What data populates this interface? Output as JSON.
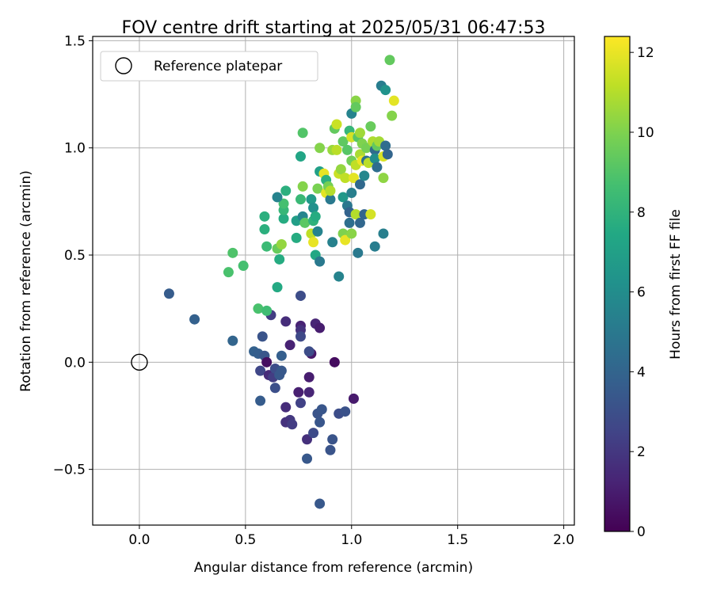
{
  "chart_data": {
    "type": "scatter",
    "title": "FOV centre drift starting at 2025/05/31 06:47:53",
    "xlabel": "Angular distance from reference (arcmin)",
    "ylabel": "Rotation from reference (arcmin)",
    "xlim": [
      -0.22,
      2.05
    ],
    "ylim": [
      -0.76,
      1.52
    ],
    "xticks": [
      0.0,
      0.5,
      1.0,
      1.5,
      2.0
    ],
    "xtick_labels": [
      "0.0",
      "0.5",
      "1.0",
      "1.5",
      "2.0"
    ],
    "yticks": [
      -0.5,
      0.0,
      0.5,
      1.0,
      1.5
    ],
    "ytick_labels": [
      "−0.5",
      "0.0",
      "0.5",
      "1.0",
      "1.5"
    ],
    "grid": true,
    "legend": {
      "placement": "top-left",
      "entries": [
        "Reference platepar"
      ]
    },
    "reference_point": {
      "x": 0.0,
      "y": 0.0,
      "label": "Reference platepar",
      "marker": "open-circle"
    },
    "colorbar": {
      "label": "Hours from first FF file",
      "range": [
        0,
        12.4
      ],
      "ticks": [
        0,
        2,
        4,
        6,
        8,
        10,
        12
      ],
      "tick_labels": [
        "0",
        "2",
        "4",
        "6",
        "8",
        "10",
        "12"
      ],
      "colormap": "viridis"
    },
    "points": [
      {
        "x": 0.14,
        "y": 0.32,
        "h": 3.6
      },
      {
        "x": 0.26,
        "y": 0.2,
        "h": 3.8
      },
      {
        "x": 0.44,
        "y": 0.1,
        "h": 4.0
      },
      {
        "x": 0.54,
        "y": 0.05,
        "h": 3.8
      },
      {
        "x": 0.56,
        "y": 0.04,
        "h": 3.7
      },
      {
        "x": 0.58,
        "y": 0.12,
        "h": 3.2
      },
      {
        "x": 0.57,
        "y": -0.04,
        "h": 2.6
      },
      {
        "x": 0.59,
        "y": 0.03,
        "h": 3.3
      },
      {
        "x": 0.61,
        "y": -0.06,
        "h": 1.5
      },
      {
        "x": 0.6,
        "y": 0.0,
        "h": 0.5
      },
      {
        "x": 0.63,
        "y": -0.07,
        "h": 2.2
      },
      {
        "x": 0.64,
        "y": -0.03,
        "h": 2.9
      },
      {
        "x": 0.66,
        "y": -0.06,
        "h": 3.4
      },
      {
        "x": 0.67,
        "y": 0.03,
        "h": 3.7
      },
      {
        "x": 0.67,
        "y": -0.04,
        "h": 3.4
      },
      {
        "x": 0.64,
        "y": -0.12,
        "h": 3.0
      },
      {
        "x": 0.57,
        "y": -0.18,
        "h": 3.6
      },
      {
        "x": 0.69,
        "y": -0.21,
        "h": 1.6
      },
      {
        "x": 0.71,
        "y": -0.27,
        "h": 2.0
      },
      {
        "x": 0.69,
        "y": -0.28,
        "h": 1.8
      },
      {
        "x": 0.72,
        "y": -0.29,
        "h": 2.2
      },
      {
        "x": 0.75,
        "y": -0.14,
        "h": 1.1
      },
      {
        "x": 0.76,
        "y": -0.19,
        "h": 2.4
      },
      {
        "x": 0.8,
        "y": -0.14,
        "h": 1.3
      },
      {
        "x": 0.8,
        "y": -0.07,
        "h": 1.0
      },
      {
        "x": 0.79,
        "y": -0.36,
        "h": 1.7
      },
      {
        "x": 0.82,
        "y": -0.33,
        "h": 2.8
      },
      {
        "x": 0.84,
        "y": -0.24,
        "h": 3.2
      },
      {
        "x": 0.85,
        "y": -0.28,
        "h": 3.3
      },
      {
        "x": 0.86,
        "y": -0.22,
        "h": 3.3
      },
      {
        "x": 0.79,
        "y": -0.45,
        "h": 3.4
      },
      {
        "x": 0.85,
        "y": -0.66,
        "h": 3.4
      },
      {
        "x": 0.9,
        "y": -0.41,
        "h": 3.2
      },
      {
        "x": 0.91,
        "y": -0.36,
        "h": 3.2
      },
      {
        "x": 0.94,
        "y": -0.24,
        "h": 2.9
      },
      {
        "x": 0.97,
        "y": -0.23,
        "h": 3.1
      },
      {
        "x": 1.01,
        "y": -0.17,
        "h": 0.9
      },
      {
        "x": 0.92,
        "y": 0.0,
        "h": 0.4
      },
      {
        "x": 0.81,
        "y": 0.04,
        "h": 0.8
      },
      {
        "x": 0.8,
        "y": 0.05,
        "h": 2.9
      },
      {
        "x": 0.71,
        "y": 0.08,
        "h": 1.2
      },
      {
        "x": 0.62,
        "y": 0.22,
        "h": 2.2
      },
      {
        "x": 0.69,
        "y": 0.19,
        "h": 1.6
      },
      {
        "x": 0.76,
        "y": 0.17,
        "h": 1.2
      },
      {
        "x": 0.76,
        "y": 0.15,
        "h": 1.8
      },
      {
        "x": 0.83,
        "y": 0.18,
        "h": 1.3
      },
      {
        "x": 0.85,
        "y": 0.16,
        "h": 1.0
      },
      {
        "x": 0.76,
        "y": 0.12,
        "h": 2.7
      },
      {
        "x": 0.76,
        "y": 0.31,
        "h": 2.9
      },
      {
        "x": 0.42,
        "y": 0.42,
        "h": 8.8
      },
      {
        "x": 0.44,
        "y": 0.51,
        "h": 8.9
      },
      {
        "x": 0.49,
        "y": 0.45,
        "h": 8.7
      },
      {
        "x": 0.56,
        "y": 0.25,
        "h": 8.8
      },
      {
        "x": 0.6,
        "y": 0.24,
        "h": 8.5
      },
      {
        "x": 0.65,
        "y": 0.35,
        "h": 7.5
      },
      {
        "x": 0.6,
        "y": 0.54,
        "h": 8.4
      },
      {
        "x": 0.66,
        "y": 0.48,
        "h": 7.6
      },
      {
        "x": 0.65,
        "y": 0.53,
        "h": 9.5
      },
      {
        "x": 0.67,
        "y": 0.55,
        "h": 10.4
      },
      {
        "x": 0.59,
        "y": 0.62,
        "h": 7.8
      },
      {
        "x": 0.59,
        "y": 0.68,
        "h": 7.8
      },
      {
        "x": 0.68,
        "y": 0.67,
        "h": 7.6
      },
      {
        "x": 0.68,
        "y": 0.71,
        "h": 8.2
      },
      {
        "x": 0.68,
        "y": 0.74,
        "h": 8.7
      },
      {
        "x": 0.69,
        "y": 0.8,
        "h": 7.8
      },
      {
        "x": 0.65,
        "y": 0.77,
        "h": 5.5
      },
      {
        "x": 0.74,
        "y": 0.58,
        "h": 7.6
      },
      {
        "x": 0.74,
        "y": 0.66,
        "h": 6.9
      },
      {
        "x": 0.76,
        "y": 0.76,
        "h": 8.3
      },
      {
        "x": 0.77,
        "y": 0.68,
        "h": 5.6
      },
      {
        "x": 0.78,
        "y": 0.65,
        "h": 9.2
      },
      {
        "x": 0.77,
        "y": 0.82,
        "h": 10.1
      },
      {
        "x": 0.76,
        "y": 0.96,
        "h": 7.3
      },
      {
        "x": 0.77,
        "y": 1.07,
        "h": 9.0
      },
      {
        "x": 0.81,
        "y": 0.76,
        "h": 6.7
      },
      {
        "x": 0.82,
        "y": 0.72,
        "h": 6.2
      },
      {
        "x": 0.82,
        "y": 0.66,
        "h": 8.0
      },
      {
        "x": 0.81,
        "y": 0.6,
        "h": 11.2
      },
      {
        "x": 0.82,
        "y": 0.56,
        "h": 12.0
      },
      {
        "x": 0.83,
        "y": 0.68,
        "h": 7.6
      },
      {
        "x": 0.83,
        "y": 0.5,
        "h": 7.4
      },
      {
        "x": 0.85,
        "y": 0.47,
        "h": 5.0
      },
      {
        "x": 0.84,
        "y": 0.61,
        "h": 5.5
      },
      {
        "x": 0.84,
        "y": 0.81,
        "h": 9.9
      },
      {
        "x": 0.85,
        "y": 0.89,
        "h": 7.0
      },
      {
        "x": 0.85,
        "y": 1.0,
        "h": 10.1
      },
      {
        "x": 0.87,
        "y": 0.88,
        "h": 12.0
      },
      {
        "x": 0.88,
        "y": 0.79,
        "h": 11.9
      },
      {
        "x": 0.88,
        "y": 0.85,
        "h": 7.8
      },
      {
        "x": 0.89,
        "y": 0.82,
        "h": 9.8
      },
      {
        "x": 0.9,
        "y": 0.76,
        "h": 5.0
      },
      {
        "x": 0.9,
        "y": 0.8,
        "h": 11.0
      },
      {
        "x": 0.91,
        "y": 0.56,
        "h": 5.4
      },
      {
        "x": 0.91,
        "y": 0.99,
        "h": 10.5
      },
      {
        "x": 0.92,
        "y": 1.09,
        "h": 9.4
      },
      {
        "x": 0.93,
        "y": 0.99,
        "h": 11.1
      },
      {
        "x": 0.93,
        "y": 1.11,
        "h": 11.4
      },
      {
        "x": 0.94,
        "y": 0.4,
        "h": 5.5
      },
      {
        "x": 0.94,
        "y": 0.88,
        "h": 11.4
      },
      {
        "x": 0.95,
        "y": 0.9,
        "h": 10.4
      },
      {
        "x": 0.96,
        "y": 1.03,
        "h": 9.3
      },
      {
        "x": 0.96,
        "y": 0.6,
        "h": 10.0
      },
      {
        "x": 0.96,
        "y": 0.77,
        "h": 6.6
      },
      {
        "x": 0.97,
        "y": 0.86,
        "h": 11.2
      },
      {
        "x": 0.97,
        "y": 0.57,
        "h": 12.0
      },
      {
        "x": 0.98,
        "y": 0.99,
        "h": 9.1
      },
      {
        "x": 0.98,
        "y": 0.73,
        "h": 4.9
      },
      {
        "x": 0.99,
        "y": 1.08,
        "h": 8.2
      },
      {
        "x": 0.99,
        "y": 0.65,
        "h": 4.5
      },
      {
        "x": 0.99,
        "y": 0.7,
        "h": 3.9
      },
      {
        "x": 1.0,
        "y": 1.16,
        "h": 5.5
      },
      {
        "x": 1.0,
        "y": 1.05,
        "h": 11.6
      },
      {
        "x": 1.0,
        "y": 0.94,
        "h": 9.7
      },
      {
        "x": 1.0,
        "y": 0.79,
        "h": 5.3
      },
      {
        "x": 1.0,
        "y": 0.6,
        "h": 10.2
      },
      {
        "x": 1.01,
        "y": 0.86,
        "h": 11.9
      },
      {
        "x": 1.02,
        "y": 0.92,
        "h": 11.2
      },
      {
        "x": 1.02,
        "y": 1.22,
        "h": 10.2
      },
      {
        "x": 1.02,
        "y": 1.19,
        "h": 9.4
      },
      {
        "x": 1.02,
        "y": 0.69,
        "h": 11.0
      },
      {
        "x": 1.03,
        "y": 0.51,
        "h": 5.0
      },
      {
        "x": 1.03,
        "y": 1.05,
        "h": 9.1
      },
      {
        "x": 1.04,
        "y": 1.07,
        "h": 10.6
      },
      {
        "x": 1.04,
        "y": 0.97,
        "h": 10.8
      },
      {
        "x": 1.04,
        "y": 0.83,
        "h": 4.2
      },
      {
        "x": 1.04,
        "y": 0.65,
        "h": 4.1
      },
      {
        "x": 1.05,
        "y": 1.02,
        "h": 10.0
      },
      {
        "x": 1.05,
        "y": 0.94,
        "h": 12.1
      },
      {
        "x": 1.06,
        "y": 0.87,
        "h": 5.7
      },
      {
        "x": 1.06,
        "y": 0.69,
        "h": 4.0
      },
      {
        "x": 1.07,
        "y": 1.0,
        "h": 9.8
      },
      {
        "x": 1.07,
        "y": 0.94,
        "h": 4.6
      },
      {
        "x": 1.08,
        "y": 0.93,
        "h": 11.1
      },
      {
        "x": 1.09,
        "y": 0.69,
        "h": 11.6
      },
      {
        "x": 1.09,
        "y": 1.1,
        "h": 9.5
      },
      {
        "x": 1.1,
        "y": 1.03,
        "h": 10.9
      },
      {
        "x": 1.11,
        "y": 0.99,
        "h": 4.3
      },
      {
        "x": 1.11,
        "y": 0.95,
        "h": 6.0
      },
      {
        "x": 1.12,
        "y": 0.91,
        "h": 4.4
      },
      {
        "x": 1.11,
        "y": 0.54,
        "h": 5.2
      },
      {
        "x": 1.12,
        "y": 1.01,
        "h": 9.4
      },
      {
        "x": 1.13,
        "y": 1.03,
        "h": 10.7
      },
      {
        "x": 1.14,
        "y": 1.29,
        "h": 5.2
      },
      {
        "x": 1.15,
        "y": 0.96,
        "h": 11.7
      },
      {
        "x": 1.15,
        "y": 0.86,
        "h": 10.3
      },
      {
        "x": 1.15,
        "y": 0.6,
        "h": 5.3
      },
      {
        "x": 1.16,
        "y": 1.27,
        "h": 6.3
      },
      {
        "x": 1.16,
        "y": 1.01,
        "h": 4.4
      },
      {
        "x": 1.17,
        "y": 0.97,
        "h": 4.0
      },
      {
        "x": 1.18,
        "y": 1.41,
        "h": 9.4
      },
      {
        "x": 1.19,
        "y": 1.15,
        "h": 10.1
      },
      {
        "x": 1.2,
        "y": 1.22,
        "h": 11.9
      }
    ]
  }
}
